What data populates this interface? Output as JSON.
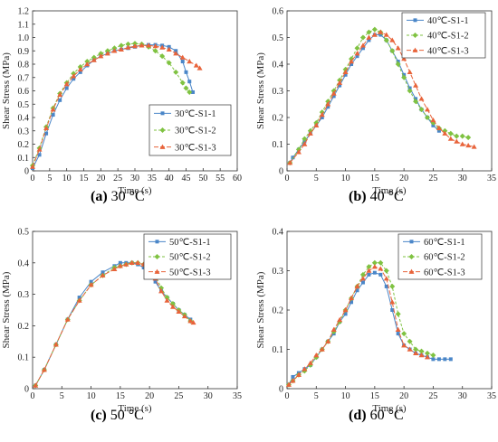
{
  "colors": {
    "s1": "#4a86c8",
    "s2": "#7fc241",
    "s3": "#e8633a"
  },
  "chart_data": [
    {
      "type": "line",
      "caption_letter": "(a)",
      "caption_text": " 30 °C",
      "xlabel": "Time (s)",
      "ylabel": "Shear Stress (MPa)",
      "xlim": [
        0,
        60
      ],
      "ylim": [
        0,
        1.2
      ],
      "xticks": [
        0,
        5,
        10,
        15,
        20,
        25,
        30,
        35,
        40,
        45,
        50,
        55,
        60
      ],
      "yticks": [
        0,
        0.1,
        0.2,
        0.3,
        0.4,
        0.5,
        0.6,
        0.7,
        0.8,
        0.9,
        1.0,
        1.1,
        1.2
      ],
      "ytick_labels": [
        "0",
        "0.1",
        "0.2",
        "0.3",
        "0.4",
        "0.5",
        "0.6",
        "0.7",
        "0.8",
        "0.9",
        "1.0",
        "1.1",
        "1.2"
      ],
      "legend_position": "lower-right",
      "series": [
        {
          "name": "30℃-S1-1",
          "marker": "square",
          "x": [
            0,
            2,
            4,
            6,
            8,
            10,
            12,
            14,
            16,
            18,
            20,
            22,
            24,
            26,
            28,
            30,
            32,
            34,
            36,
            38,
            40,
            42,
            44,
            45,
            46,
            47
          ],
          "y": [
            0.02,
            0.12,
            0.28,
            0.42,
            0.53,
            0.62,
            0.69,
            0.74,
            0.79,
            0.83,
            0.86,
            0.88,
            0.9,
            0.91,
            0.92,
            0.93,
            0.94,
            0.945,
            0.945,
            0.94,
            0.93,
            0.9,
            0.82,
            0.74,
            0.67,
            0.59
          ]
        },
        {
          "name": "30℃-S1-2",
          "marker": "diamond",
          "x": [
            0,
            2,
            4,
            6,
            8,
            10,
            12,
            14,
            16,
            18,
            20,
            22,
            24,
            26,
            28,
            30,
            32,
            34,
            36,
            38,
            40,
            42,
            44,
            45,
            46
          ],
          "y": [
            0.04,
            0.17,
            0.33,
            0.47,
            0.58,
            0.66,
            0.73,
            0.78,
            0.82,
            0.85,
            0.88,
            0.9,
            0.92,
            0.94,
            0.95,
            0.955,
            0.95,
            0.93,
            0.9,
            0.86,
            0.81,
            0.74,
            0.66,
            0.62,
            0.59
          ]
        },
        {
          "name": "30℃-S1-3",
          "marker": "triangle",
          "x": [
            0,
            2,
            4,
            6,
            8,
            10,
            12,
            14,
            16,
            18,
            20,
            22,
            24,
            26,
            28,
            30,
            32,
            34,
            36,
            38,
            40,
            42,
            44,
            46,
            48,
            49
          ],
          "y": [
            0.03,
            0.16,
            0.32,
            0.46,
            0.57,
            0.65,
            0.71,
            0.76,
            0.8,
            0.83,
            0.86,
            0.88,
            0.9,
            0.91,
            0.925,
            0.935,
            0.94,
            0.94,
            0.935,
            0.925,
            0.91,
            0.88,
            0.85,
            0.82,
            0.79,
            0.77
          ]
        }
      ]
    },
    {
      "type": "line",
      "caption_letter": "(b)",
      "caption_text": " 40 °C",
      "xlabel": "Time (s)",
      "ylabel": "Shear Stress (MPa)",
      "xlim": [
        0,
        35
      ],
      "ylim": [
        0,
        0.6
      ],
      "xticks": [
        0,
        5,
        10,
        15,
        20,
        25,
        30,
        35
      ],
      "yticks": [
        0,
        0.1,
        0.2,
        0.3,
        0.4,
        0.5,
        0.6
      ],
      "ytick_labels": [
        "0",
        "0.1",
        "0.2",
        "0.3",
        "0.4",
        "0.5",
        "0.6"
      ],
      "legend_position": "top-right",
      "series": [
        {
          "name": "40℃-S1-1",
          "marker": "square",
          "x": [
            0.5,
            1,
            2,
            3,
            4,
            5,
            6,
            7,
            8,
            9,
            10,
            11,
            12,
            13,
            14,
            15,
            16,
            17,
            18,
            19,
            20,
            21,
            22,
            23,
            24,
            25,
            26
          ],
          "y": [
            0.03,
            0.05,
            0.08,
            0.11,
            0.14,
            0.17,
            0.2,
            0.24,
            0.28,
            0.32,
            0.36,
            0.4,
            0.43,
            0.46,
            0.49,
            0.51,
            0.51,
            0.49,
            0.45,
            0.41,
            0.36,
            0.31,
            0.27,
            0.23,
            0.2,
            0.17,
            0.15
          ]
        },
        {
          "name": "40℃-S1-2",
          "marker": "diamond",
          "x": [
            0.5,
            2,
            3,
            4,
            5,
            6,
            7,
            8,
            9,
            10,
            11,
            12,
            13,
            14,
            15,
            16,
            17,
            18,
            19,
            20,
            21,
            22,
            23,
            24,
            25,
            26,
            27,
            28,
            29,
            30,
            31
          ],
          "y": [
            0.03,
            0.08,
            0.12,
            0.15,
            0.18,
            0.22,
            0.26,
            0.3,
            0.34,
            0.38,
            0.42,
            0.46,
            0.5,
            0.52,
            0.53,
            0.52,
            0.49,
            0.45,
            0.4,
            0.35,
            0.3,
            0.26,
            0.23,
            0.2,
            0.18,
            0.16,
            0.15,
            0.14,
            0.13,
            0.13,
            0.125
          ]
        },
        {
          "name": "40℃-S1-3",
          "marker": "triangle",
          "x": [
            0.5,
            2,
            3,
            4,
            5,
            6,
            7,
            8,
            9,
            10,
            11,
            12,
            13,
            14,
            15,
            16,
            17,
            18,
            19,
            20,
            21,
            22,
            23,
            24,
            25,
            26,
            27,
            28,
            29,
            30,
            31,
            32
          ],
          "y": [
            0.03,
            0.07,
            0.1,
            0.14,
            0.17,
            0.21,
            0.25,
            0.29,
            0.33,
            0.37,
            0.41,
            0.44,
            0.47,
            0.5,
            0.51,
            0.52,
            0.51,
            0.49,
            0.46,
            0.42,
            0.37,
            0.32,
            0.27,
            0.23,
            0.19,
            0.16,
            0.14,
            0.12,
            0.11,
            0.1,
            0.095,
            0.09
          ]
        }
      ]
    },
    {
      "type": "line",
      "caption_letter": "(c)",
      "caption_text": " 50 °C",
      "xlabel": "Time (s)",
      "ylabel": "Shear Stress (MPa)",
      "xlim": [
        0,
        35
      ],
      "ylim": [
        0,
        0.5
      ],
      "xticks": [
        0,
        5,
        10,
        15,
        20,
        25,
        30,
        35
      ],
      "yticks": [
        0,
        0.1,
        0.2,
        0.3,
        0.4,
        0.5
      ],
      "ytick_labels": [
        "0",
        "0.1",
        "0.2",
        "0.3",
        "0.4",
        "0.5"
      ],
      "legend_position": "top-right",
      "series": [
        {
          "name": "50℃-S1-1",
          "marker": "square",
          "x": [
            0.5,
            2,
            4,
            6,
            8,
            10,
            12,
            14,
            15,
            16,
            17,
            18,
            19,
            20,
            21,
            22,
            23,
            24,
            25,
            26,
            27
          ],
          "y": [
            0.01,
            0.06,
            0.14,
            0.22,
            0.29,
            0.34,
            0.37,
            0.39,
            0.4,
            0.4,
            0.4,
            0.395,
            0.385,
            0.37,
            0.34,
            0.31,
            0.29,
            0.27,
            0.25,
            0.235,
            0.22
          ]
        },
        {
          "name": "50℃-S1-2",
          "marker": "diamond",
          "x": [
            0.5,
            2,
            4,
            6,
            8,
            10,
            12,
            14,
            15,
            16,
            17,
            18,
            19,
            20,
            21,
            22,
            23,
            24,
            25,
            26,
            27
          ],
          "y": [
            0.01,
            0.06,
            0.14,
            0.22,
            0.28,
            0.33,
            0.36,
            0.385,
            0.39,
            0.395,
            0.4,
            0.4,
            0.395,
            0.385,
            0.36,
            0.32,
            0.29,
            0.27,
            0.25,
            0.235,
            0.215
          ]
        },
        {
          "name": "50℃-S1-3",
          "marker": "triangle",
          "x": [
            0.5,
            2,
            4,
            6,
            8,
            10,
            12,
            14,
            15,
            16,
            17,
            18,
            19,
            20,
            21,
            22,
            23,
            24,
            25,
            26,
            27,
            27.5
          ],
          "y": [
            0.01,
            0.06,
            0.14,
            0.22,
            0.28,
            0.33,
            0.36,
            0.38,
            0.39,
            0.395,
            0.4,
            0.4,
            0.395,
            0.38,
            0.35,
            0.31,
            0.28,
            0.26,
            0.245,
            0.23,
            0.215,
            0.21
          ]
        }
      ]
    },
    {
      "type": "line",
      "caption_letter": "(d)",
      "caption_text": " 60 °C",
      "xlabel": "Time (s)",
      "ylabel": "Shear Stress (MPa)",
      "xlim": [
        0,
        35
      ],
      "ylim": [
        0,
        0.4
      ],
      "xticks": [
        0,
        5,
        10,
        15,
        20,
        25,
        30,
        35
      ],
      "yticks": [
        0,
        0.1,
        0.2,
        0.3,
        0.4
      ],
      "ytick_labels": [
        "0",
        "0.1",
        "0.2",
        "0.3",
        "0.4"
      ],
      "legend_position": "top-right",
      "series": [
        {
          "name": "60℃-S1-1",
          "marker": "square",
          "x": [
            0.3,
            1,
            2,
            3,
            4,
            5,
            6,
            7,
            8,
            9,
            10,
            11,
            12,
            13,
            14,
            15,
            16,
            17,
            18,
            19,
            20,
            21,
            22,
            23,
            24,
            25,
            26,
            27,
            28
          ],
          "y": [
            0.01,
            0.03,
            0.04,
            0.05,
            0.06,
            0.08,
            0.1,
            0.12,
            0.14,
            0.17,
            0.19,
            0.22,
            0.25,
            0.27,
            0.29,
            0.295,
            0.29,
            0.26,
            0.2,
            0.14,
            0.11,
            0.1,
            0.09,
            0.085,
            0.08,
            0.075,
            0.075,
            0.075,
            0.075
          ]
        },
        {
          "name": "60℃-S1-2",
          "marker": "diamond",
          "x": [
            0.3,
            1,
            2,
            3,
            4,
            5,
            6,
            7,
            8,
            9,
            10,
            11,
            12,
            13,
            14,
            15,
            16,
            17,
            18,
            19,
            20,
            21,
            22,
            23,
            24,
            25
          ],
          "y": [
            0.01,
            0.02,
            0.035,
            0.045,
            0.06,
            0.08,
            0.1,
            0.12,
            0.145,
            0.17,
            0.2,
            0.23,
            0.26,
            0.29,
            0.31,
            0.32,
            0.32,
            0.3,
            0.26,
            0.19,
            0.14,
            0.12,
            0.1,
            0.095,
            0.09,
            0.085
          ]
        },
        {
          "name": "60℃-S1-3",
          "marker": "triangle",
          "x": [
            0.3,
            1,
            2,
            3,
            4,
            5,
            6,
            7,
            8,
            9,
            10,
            11,
            12,
            13,
            14,
            15,
            16,
            17,
            18,
            19,
            20,
            21,
            22,
            23,
            24
          ],
          "y": [
            0.01,
            0.02,
            0.035,
            0.05,
            0.065,
            0.085,
            0.1,
            0.12,
            0.15,
            0.175,
            0.2,
            0.23,
            0.26,
            0.28,
            0.3,
            0.31,
            0.305,
            0.28,
            0.22,
            0.15,
            0.11,
            0.1,
            0.09,
            0.085,
            0.08
          ]
        }
      ]
    }
  ]
}
